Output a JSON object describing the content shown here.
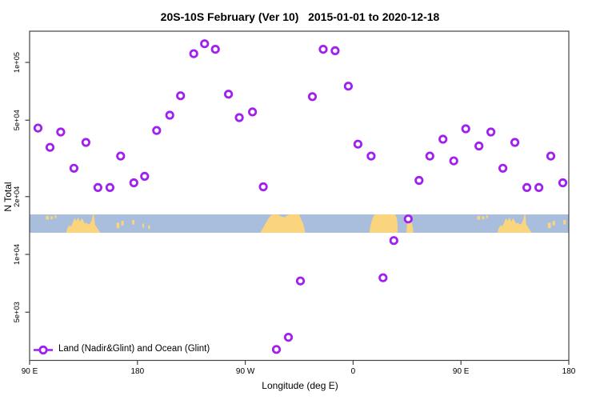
{
  "legend": {
    "label": "Land (Nadir&Glint) and Ocean (Glint)"
  },
  "colors": {
    "marker": "#A020F0",
    "marker_fill": "#FFFFFF",
    "ocean": "#A9BDDC",
    "land": "#FBD47E",
    "axis": "#444444",
    "text": "#000000",
    "background": "#FFFFFF"
  },
  "chart_data": {
    "type": "scatter",
    "title": "20S-10S February (Ver 10)   2015-01-01 to 2020-12-18",
    "xlabel": "Longitude (deg E)",
    "ylabel": "N Total",
    "x_axis": {
      "start": "90E eastward, wrapping around the globe 1.25 times",
      "span_deg": 450,
      "ticks": [
        {
          "deg": 0,
          "label": "90 E"
        },
        {
          "deg": 90,
          "label": "180"
        },
        {
          "deg": 180,
          "label": "90 W"
        },
        {
          "deg": 270,
          "label": "0"
        },
        {
          "deg": 360,
          "label": "90 E"
        },
        {
          "deg": 450,
          "label": "180"
        }
      ]
    },
    "y_axis": {
      "scale": "log",
      "ticks": [
        {
          "value": 5000,
          "label": "5e+03"
        },
        {
          "value": 10000,
          "label": "1e+04"
        },
        {
          "value": 20000,
          "label": "2e+04"
        },
        {
          "value": 50000,
          "label": "5e+04"
        },
        {
          "value": 100000,
          "label": "1e+05"
        }
      ],
      "range_approx": [
        3000,
        145000
      ]
    },
    "points": [
      {
        "deg": 7,
        "n": 45500
      },
      {
        "deg": 17,
        "n": 36100
      },
      {
        "deg": 26,
        "n": 43400
      },
      {
        "deg": 37,
        "n": 28100
      },
      {
        "deg": 47,
        "n": 38300
      },
      {
        "deg": 57,
        "n": 22300
      },
      {
        "deg": 67,
        "n": 22300
      },
      {
        "deg": 76,
        "n": 32500
      },
      {
        "deg": 87,
        "n": 23600
      },
      {
        "deg": 96,
        "n": 25500
      },
      {
        "deg": 106,
        "n": 44200
      },
      {
        "deg": 117,
        "n": 53100
      },
      {
        "deg": 126,
        "n": 67000
      },
      {
        "deg": 137,
        "n": 111000
      },
      {
        "deg": 146,
        "n": 125000
      },
      {
        "deg": 155,
        "n": 117000
      },
      {
        "deg": 166,
        "n": 68300
      },
      {
        "deg": 175,
        "n": 51600
      },
      {
        "deg": 186,
        "n": 55200
      },
      {
        "deg": 195,
        "n": 22500
      },
      {
        "deg": 206,
        "n": 3200
      },
      {
        "deg": 216,
        "n": 3700
      },
      {
        "deg": 226,
        "n": 7270
      },
      {
        "deg": 236,
        "n": 66300
      },
      {
        "deg": 245,
        "n": 117000
      },
      {
        "deg": 255,
        "n": 115000
      },
      {
        "deg": 266,
        "n": 75200
      },
      {
        "deg": 274,
        "n": 37500
      },
      {
        "deg": 285,
        "n": 32500
      },
      {
        "deg": 295,
        "n": 7560
      },
      {
        "deg": 304,
        "n": 11800
      },
      {
        "deg": 316,
        "n": 15300
      },
      {
        "deg": 325,
        "n": 24300
      },
      {
        "deg": 334,
        "n": 32500
      },
      {
        "deg": 345,
        "n": 39800
      },
      {
        "deg": 354,
        "n": 30700
      },
      {
        "deg": 364,
        "n": 45100
      },
      {
        "deg": 375,
        "n": 36700
      },
      {
        "deg": 385,
        "n": 43400
      },
      {
        "deg": 395,
        "n": 28100
      },
      {
        "deg": 405,
        "n": 38300
      },
      {
        "deg": 415,
        "n": 22300
      },
      {
        "deg": 425,
        "n": 22300
      },
      {
        "deg": 435,
        "n": 32500
      },
      {
        "deg": 445,
        "n": 23600
      }
    ],
    "map_band": {
      "top_n": 16150,
      "bottom_n": 12960,
      "lands": [
        {
          "name": "indonesia-islands",
          "type": "rects",
          "rects": [
            [
              13.5,
              0.08,
              2.5,
              0.2
            ],
            [
              17.5,
              0.1,
              2,
              0.16
            ],
            [
              21,
              0.05,
              1.5,
              0.15
            ]
          ]
        },
        {
          "name": "australia",
          "type": "poly",
          "pts": [
            [
              30.5,
              1
            ],
            [
              31.5,
              0.75
            ],
            [
              33,
              0.6
            ],
            [
              34.5,
              0.65
            ],
            [
              36,
              0.45
            ],
            [
              37.5,
              0.2
            ],
            [
              39,
              0.35
            ],
            [
              40.5,
              0.15
            ],
            [
              42,
              0.4
            ],
            [
              43.5,
              0.2
            ],
            [
              44.5,
              0.3
            ],
            [
              46,
              0.5
            ],
            [
              47.5,
              0.45
            ],
            [
              49,
              0.55
            ],
            [
              50.5,
              0.5
            ],
            [
              52,
              0.28
            ],
            [
              52.8,
              0
            ],
            [
              53.7,
              0
            ],
            [
              54.5,
              0.55
            ],
            [
              56,
              0.7
            ],
            [
              57.5,
              0.85
            ],
            [
              59,
              1
            ]
          ]
        },
        {
          "name": "melanesia-islands",
          "type": "rects",
          "rects": [
            [
              72.5,
              0.45,
              2.5,
              0.3
            ],
            [
              76.5,
              0.35,
              2,
              0.25
            ],
            [
              85.5,
              0.3,
              2,
              0.25
            ],
            [
              94,
              0.5,
              1.5,
              0.22
            ],
            [
              99,
              0.6,
              1.5,
              0.2
            ]
          ]
        },
        {
          "name": "south-america",
          "type": "poly",
          "pts": [
            [
              192.5,
              1
            ],
            [
              196,
              0.6
            ],
            [
              199,
              0.25
            ],
            [
              201.5,
              0.05
            ],
            [
              203,
              0
            ],
            [
              208,
              0.02
            ],
            [
              210,
              0.12
            ],
            [
              213,
              0.15
            ],
            [
              215,
              0.05
            ],
            [
              217,
              0
            ],
            [
              225,
              0
            ],
            [
              226.5,
              0.25
            ],
            [
              228,
              0.45
            ],
            [
              229.3,
              0.75
            ],
            [
              230,
              1
            ]
          ]
        },
        {
          "name": "africa",
          "type": "poly",
          "pts": [
            [
              283.5,
              1
            ],
            [
              284.5,
              0.6
            ],
            [
              286,
              0.25
            ],
            [
              287.5,
              0.05
            ],
            [
              289,
              0
            ],
            [
              305,
              0
            ],
            [
              306.5,
              0.2
            ],
            [
              307,
              0.5
            ],
            [
              307.2,
              1
            ]
          ]
        },
        {
          "name": "madagascar",
          "type": "poly",
          "pts": [
            [
              314.5,
              1
            ],
            [
              315,
              0.55
            ],
            [
              316,
              0.3
            ],
            [
              317.5,
              0.25
            ],
            [
              319,
              0.45
            ],
            [
              320,
              0.8
            ],
            [
              320.3,
              1
            ]
          ]
        }
      ]
    }
  }
}
